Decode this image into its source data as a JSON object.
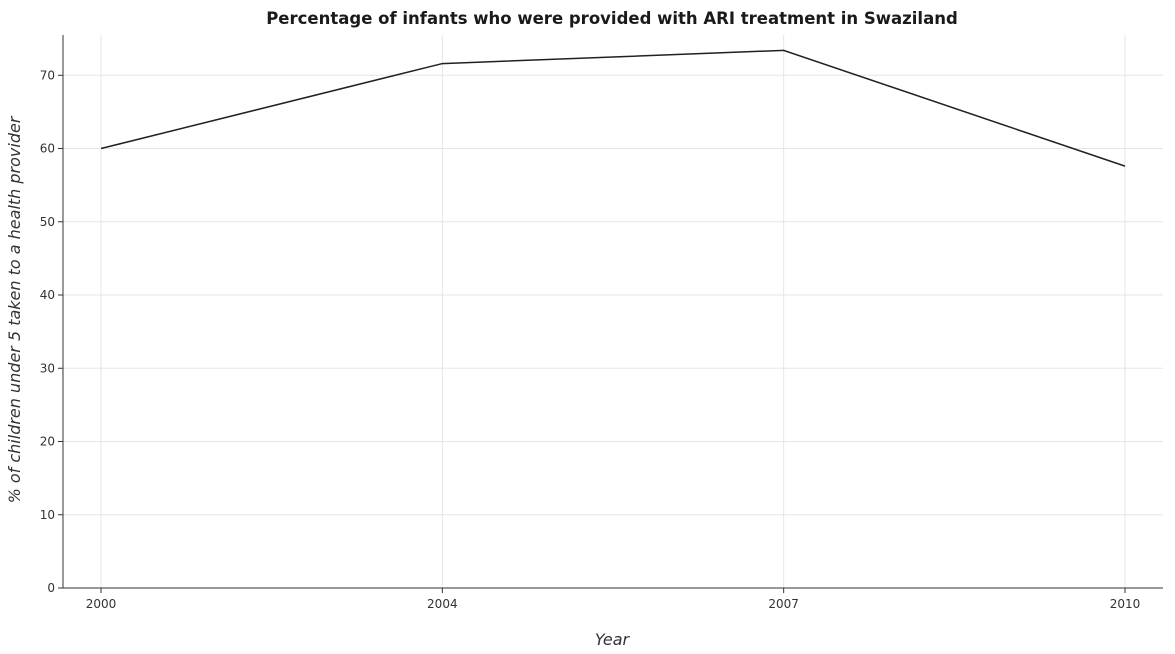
{
  "chart_data": {
    "type": "line",
    "title": "Percentage of infants who were provided with ARI treatment in Swaziland",
    "xlabel": "Year",
    "ylabel": "% of children under 5 taken to a health provider",
    "x": [
      "2000",
      "2004",
      "2007",
      "2010"
    ],
    "values": [
      60.0,
      71.6,
      73.4,
      57.6
    ],
    "yticks": [
      0,
      10,
      20,
      30,
      40,
      50,
      60,
      70
    ],
    "ylim": [
      0,
      75.5
    ],
    "grid": true,
    "legend": "none",
    "line_color": "#1f2124"
  }
}
